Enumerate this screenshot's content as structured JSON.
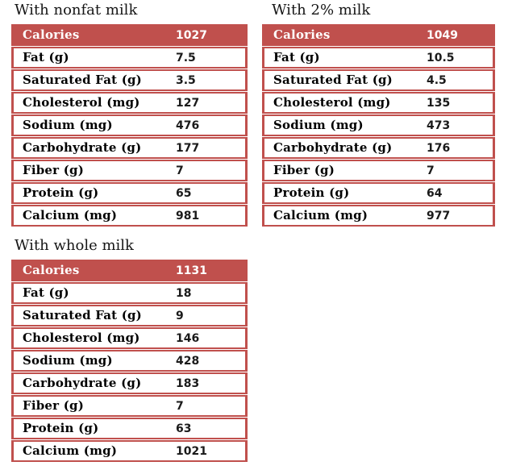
{
  "colors": {
    "accent": "#C0504D",
    "header_text": "#ffffff",
    "body_text": "#000000",
    "background": "#ffffff"
  },
  "chart_data": [
    {
      "type": "table",
      "title": "With nonfat milk",
      "rows": [
        [
          "Calories",
          "1027"
        ],
        [
          "Fat (g)",
          "7.5"
        ],
        [
          "Saturated Fat (g)",
          "3.5"
        ],
        [
          "Cholesterol (mg)",
          "127"
        ],
        [
          "Sodium (mg)",
          "476"
        ],
        [
          "Carbohydrate (g)",
          "177"
        ],
        [
          "Fiber (g)",
          "7"
        ],
        [
          "Protein (g)",
          "65"
        ],
        [
          "Calcium (mg)",
          "981"
        ]
      ]
    },
    {
      "type": "table",
      "title": "With 2% milk",
      "rows": [
        [
          "Calories",
          "1049"
        ],
        [
          "Fat (g)",
          "10.5"
        ],
        [
          "Saturated Fat (g)",
          "4.5"
        ],
        [
          "Cholesterol (mg)",
          "135"
        ],
        [
          "Sodium (mg)",
          "473"
        ],
        [
          "Carbohydrate (g)",
          "176"
        ],
        [
          "Fiber (g)",
          "7"
        ],
        [
          "Protein (g)",
          "64"
        ],
        [
          "Calcium (mg)",
          "977"
        ]
      ]
    },
    {
      "type": "table",
      "title": "With whole milk",
      "rows": [
        [
          "Calories",
          "1131"
        ],
        [
          "Fat (g)",
          "18"
        ],
        [
          "Saturated Fat (g)",
          "9"
        ],
        [
          "Cholesterol (mg)",
          "146"
        ],
        [
          "Sodium (mg)",
          "428"
        ],
        [
          "Carbohydrate (g)",
          "183"
        ],
        [
          "Fiber (g)",
          "7"
        ],
        [
          "Protein (g)",
          "63"
        ],
        [
          "Calcium (mg)",
          "1021"
        ]
      ]
    }
  ]
}
